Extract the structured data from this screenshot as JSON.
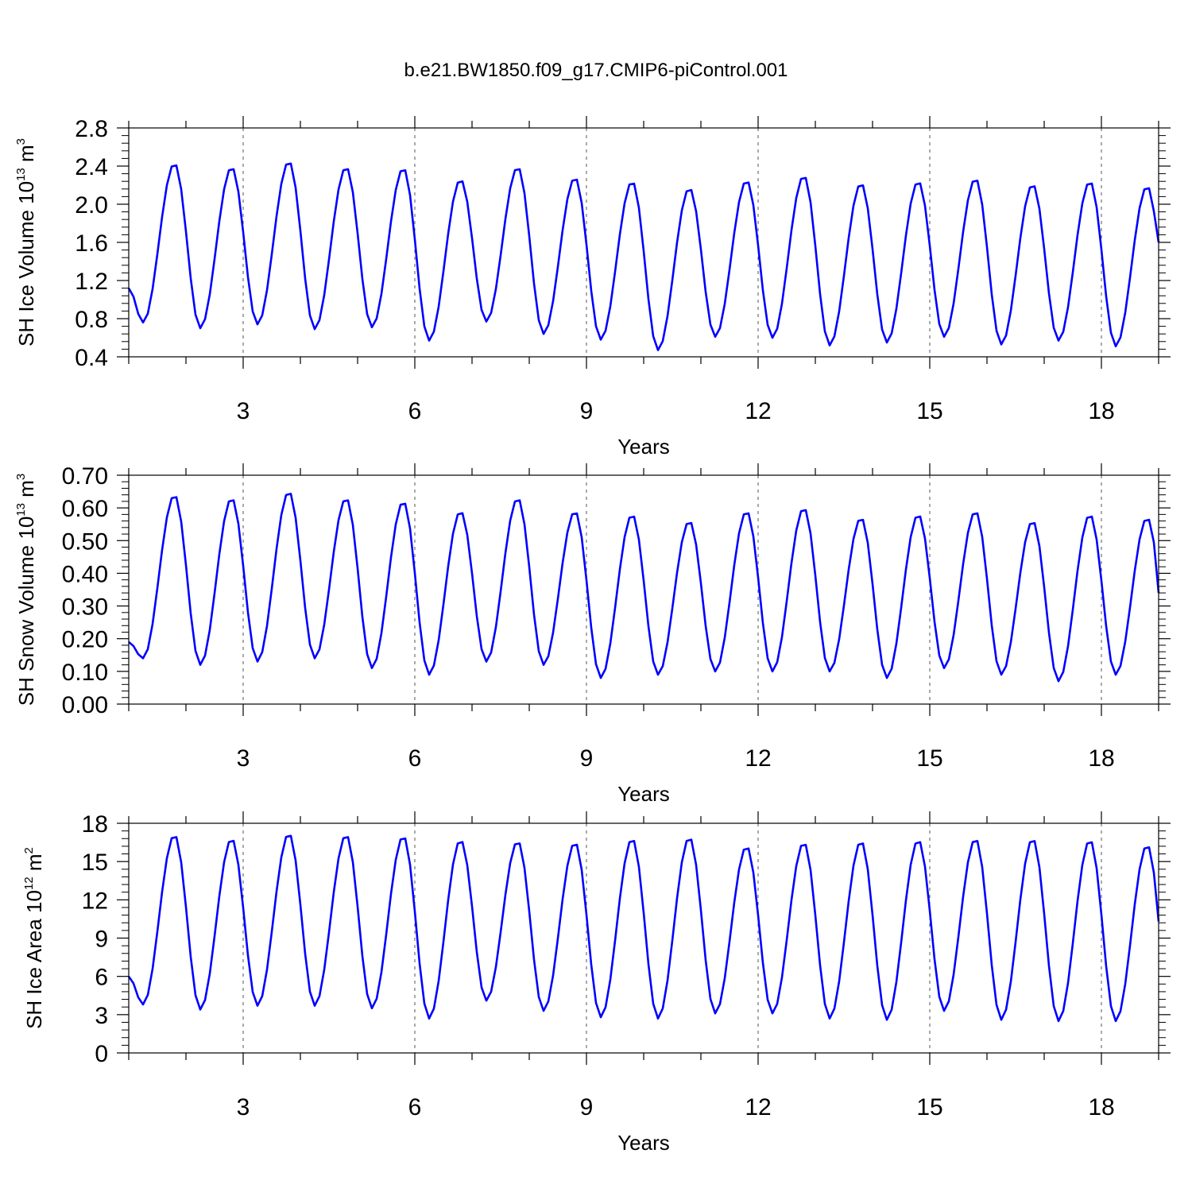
{
  "title": "b.e21.BW1850.f09_g17.CMIP6-piControl.001",
  "colors": {
    "line": "#0000ff",
    "axis": "#000000",
    "refline": "#555555"
  },
  "chart_data": [
    {
      "type": "line",
      "ylabel_parts": [
        "SH Ice Volume 10",
        "13",
        " m",
        "3"
      ],
      "xlabel": "Years",
      "xlim": [
        1,
        19
      ],
      "ylim": [
        0.4,
        2.8
      ],
      "x_ticks": [
        3,
        6,
        9,
        12,
        15,
        18
      ],
      "x_tick_labels": [
        "3",
        "6",
        "9",
        "12",
        "15",
        "18"
      ],
      "y_ticks": [
        0.4,
        0.8,
        1.2,
        1.6,
        2.0,
        2.4,
        2.8
      ],
      "y_tick_labels": [
        "0.4",
        "0.8",
        "1.2",
        "1.6",
        "2.0",
        "2.4",
        "2.8"
      ],
      "grid": "dashed vertical lines every 3 years",
      "series": [
        {
          "minima": [
            0.76,
            0.7,
            0.74,
            0.69,
            0.71,
            0.57,
            0.77,
            0.64,
            0.58,
            0.47,
            0.61,
            0.6,
            0.52,
            0.55,
            0.61,
            0.53,
            0.57,
            0.51
          ],
          "maxima": [
            2.43,
            2.39,
            2.45,
            2.39,
            2.38,
            2.26,
            2.39,
            2.28,
            2.24,
            2.17,
            2.25,
            2.3,
            2.22,
            2.24,
            2.27,
            2.21,
            2.24,
            2.19
          ],
          "start": 1.12,
          "end": 1.6
        }
      ]
    },
    {
      "type": "line",
      "ylabel_parts": [
        "SH Snow Volume 10",
        "13",
        " m",
        "3"
      ],
      "xlabel": "Years",
      "xlim": [
        1,
        19
      ],
      "ylim": [
        0,
        0.7
      ],
      "x_ticks": [
        3,
        6,
        9,
        12,
        15,
        18
      ],
      "x_tick_labels": [
        "3",
        "6",
        "9",
        "12",
        "15",
        "18"
      ],
      "y_ticks": [
        0,
        0.1,
        0.2,
        0.3,
        0.4,
        0.5,
        0.6,
        0.7
      ],
      "y_tick_labels": [
        "0.00",
        "0.10",
        "0.20",
        "0.30",
        "0.40",
        "0.50",
        "0.60",
        "0.70"
      ],
      "grid": "dashed vertical lines every 3 years",
      "series": [
        {
          "minima": [
            0.14,
            0.12,
            0.13,
            0.14,
            0.11,
            0.09,
            0.13,
            0.12,
            0.08,
            0.09,
            0.1,
            0.1,
            0.1,
            0.08,
            0.11,
            0.09,
            0.07,
            0.09
          ],
          "maxima": [
            0.64,
            0.63,
            0.65,
            0.63,
            0.62,
            0.59,
            0.63,
            0.59,
            0.58,
            0.56,
            0.59,
            0.6,
            0.57,
            0.58,
            0.59,
            0.56,
            0.58,
            0.57
          ],
          "start": 0.19,
          "end": 0.34
        }
      ]
    },
    {
      "type": "line",
      "ylabel_parts": [
        "SH Ice Area 10",
        "12",
        " m",
        "2"
      ],
      "xlabel": "Years",
      "xlim": [
        1,
        19
      ],
      "ylim": [
        0,
        18
      ],
      "x_ticks": [
        3,
        6,
        9,
        12,
        15,
        18
      ],
      "x_tick_labels": [
        "3",
        "6",
        "9",
        "12",
        "15",
        "18"
      ],
      "y_ticks": [
        0,
        3,
        6,
        9,
        12,
        15,
        18
      ],
      "y_tick_labels": [
        "0",
        "3",
        "6",
        "9",
        "12",
        "15",
        "18"
      ],
      "grid": "dashed vertical lines every 3 years",
      "series": [
        {
          "minima": [
            3.8,
            3.4,
            3.7,
            3.7,
            3.5,
            2.7,
            4.1,
            3.3,
            2.8,
            2.7,
            3.1,
            3.1,
            2.7,
            2.6,
            3.3,
            2.6,
            2.5,
            2.5
          ],
          "maxima": [
            17.1,
            16.8,
            17.2,
            17.1,
            17.0,
            16.7,
            16.6,
            16.5,
            16.8,
            16.9,
            16.2,
            16.5,
            16.6,
            16.7,
            16.8,
            16.8,
            16.7,
            16.3
          ],
          "start": 6.0,
          "end": 10.3
        }
      ]
    }
  ]
}
